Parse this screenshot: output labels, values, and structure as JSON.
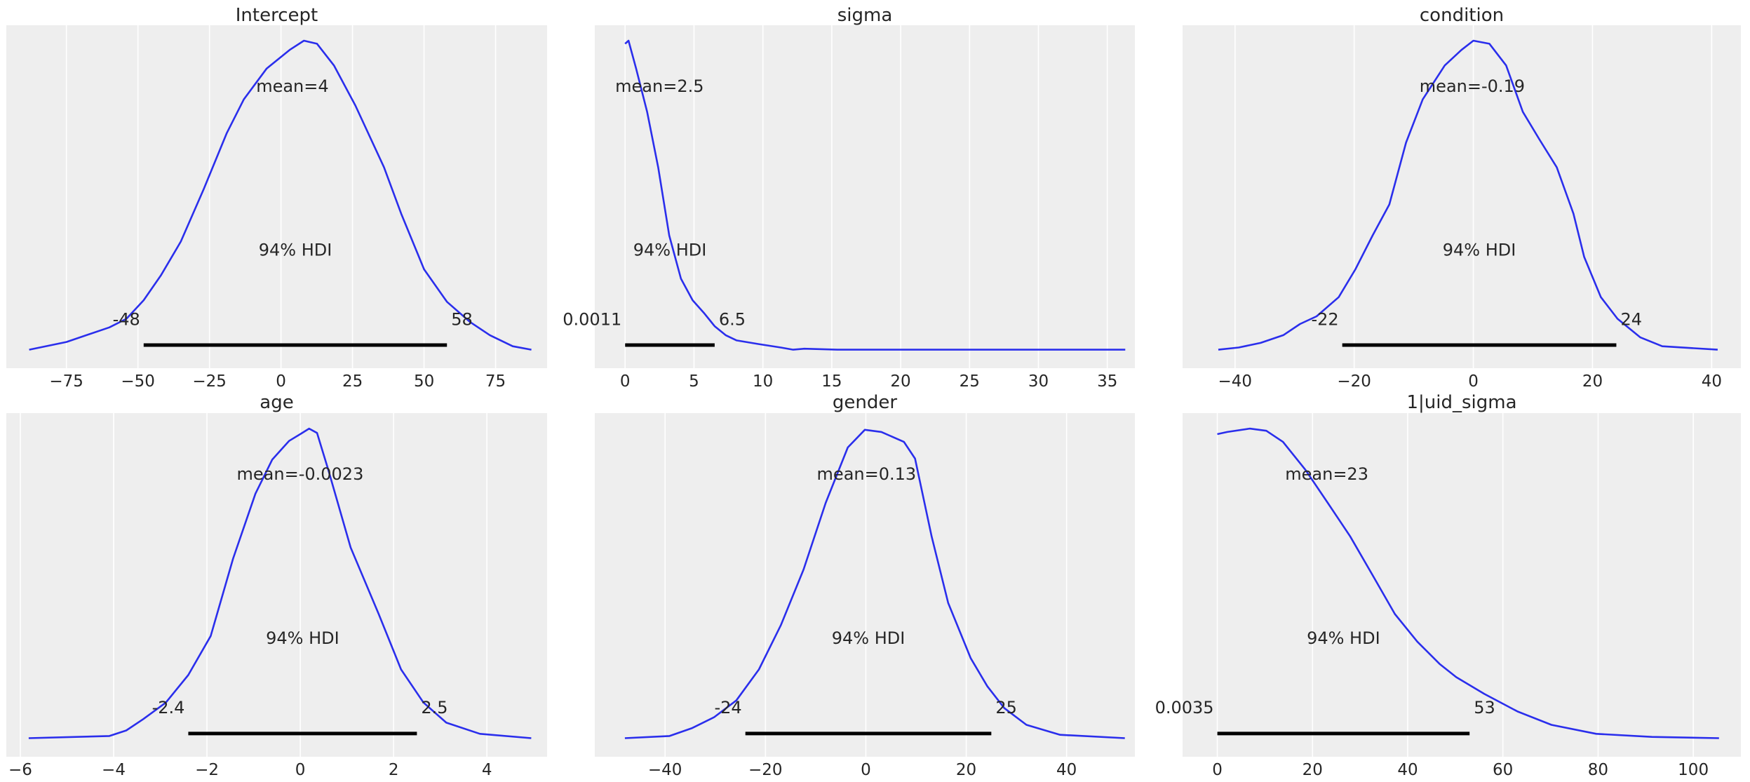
{
  "chart_data": [
    {
      "type": "line",
      "title": "Intercept",
      "xlim": [
        -96,
        93
      ],
      "ylim": [
        -0.06,
        1.05
      ],
      "xticks": [
        -75,
        -50,
        -25,
        0,
        25,
        50,
        75
      ],
      "xtick_labels": [
        "−75",
        "−50",
        "−25",
        "0",
        "25",
        "50",
        "75"
      ],
      "grid": true,
      "mean": 4,
      "mean_label": "mean=4",
      "hdi": [
        -48,
        58
      ],
      "hdi_label": "94% HDI",
      "hdi_low_label": "-48",
      "hdi_high_label": "58",
      "x": [
        -88,
        -75,
        -60,
        -54,
        -48,
        -42,
        -35,
        -27,
        -19,
        -13,
        -5,
        3,
        8,
        12.6,
        18.5,
        26,
        36,
        42,
        50,
        58,
        66,
        73,
        81,
        87.5
      ],
      "y": [
        0,
        0.025,
        0.072,
        0.1,
        0.16,
        0.24,
        0.35,
        0.52,
        0.7,
        0.81,
        0.91,
        0.97,
        1.0,
        0.99,
        0.92,
        0.79,
        0.59,
        0.44,
        0.26,
        0.155,
        0.09,
        0.047,
        0.011,
        0
      ]
    },
    {
      "type": "line",
      "title": "sigma",
      "xlim": [
        -2.2,
        37
      ],
      "ylim": [
        -0.06,
        1.05
      ],
      "xticks": [
        0,
        5,
        10,
        15,
        20,
        25,
        30,
        35
      ],
      "xtick_labels": [
        "0",
        "5",
        "10",
        "15",
        "20",
        "25",
        "30",
        "35"
      ],
      "grid": true,
      "mean": 2.5,
      "mean_label": "mean=2.5",
      "hdi": [
        0.0011,
        6.5
      ],
      "hdi_label": "94% HDI",
      "hdi_low_label": "0.0011",
      "hdi_high_label": "6.5",
      "x": [
        0,
        0.25,
        0.8,
        1.6,
        2.4,
        3.2,
        4.05,
        4.9,
        5.7,
        6.5,
        7.3,
        8.1,
        9.7,
        11.3,
        12.2,
        13,
        15.4,
        19.4,
        23.5,
        27.6,
        36.3
      ],
      "y": [
        0.99,
        1.0,
        0.91,
        0.77,
        0.59,
        0.37,
        0.23,
        0.16,
        0.12,
        0.076,
        0.047,
        0.03,
        0.018,
        0.007,
        0.0,
        0.003,
        0.0,
        0.0,
        0.0,
        0.0,
        0.0
      ]
    },
    {
      "type": "line",
      "title": "condition",
      "xlim": [
        -48.8,
        44.9
      ],
      "ylim": [
        -0.06,
        1.05
      ],
      "xticks": [
        -40,
        -20,
        0,
        20,
        40
      ],
      "xtick_labels": [
        "−40",
        "−20",
        "0",
        "20",
        "40"
      ],
      "grid": true,
      "mean": -0.19,
      "mean_label": "mean=-0.19",
      "hdi": [
        -22,
        24
      ],
      "hdi_label": "94% HDI",
      "hdi_low_label": "-22",
      "hdi_high_label": "24",
      "x": [
        -42.8,
        -39.4,
        -35.7,
        -31.9,
        -29.1,
        -26.3,
        -22.6,
        -19.8,
        -16.9,
        -14.1,
        -11.3,
        -8.5,
        -4.8,
        -2,
        0,
        2.7,
        5.5,
        8.3,
        11.1,
        14,
        16.8,
        18.6,
        21.4,
        24.2,
        28,
        31.7,
        41
      ],
      "y": [
        0,
        0.007,
        0.022,
        0.047,
        0.083,
        0.108,
        0.17,
        0.26,
        0.37,
        0.47,
        0.67,
        0.81,
        0.92,
        0.97,
        1.0,
        0.99,
        0.92,
        0.77,
        0.68,
        0.59,
        0.44,
        0.3,
        0.17,
        0.1,
        0.04,
        0.011,
        0
      ]
    },
    {
      "type": "line",
      "title": "age",
      "xlim": [
        -6.3,
        5.29
      ],
      "ylim": [
        -0.06,
        1.05
      ],
      "xticks": [
        -6,
        -4,
        -2,
        0,
        2,
        4
      ],
      "xtick_labels": [
        "−6",
        "−4",
        "−2",
        "0",
        "2",
        "4"
      ],
      "grid": true,
      "mean": -0.0023,
      "mean_label": "mean=-0.0023",
      "hdi": [
        -2.4,
        2.5
      ],
      "hdi_label": "94% HDI",
      "hdi_low_label": "-2.4",
      "hdi_high_label": "2.5",
      "x": [
        -5.82,
        -4.09,
        -3.73,
        -3.37,
        -2.88,
        -2.4,
        -1.92,
        -1.44,
        -0.96,
        -0.6,
        -0.24,
        0,
        0.19,
        0.36,
        0.6,
        1.08,
        1.68,
        2.16,
        2.64,
        3.13,
        3.85,
        4.95
      ],
      "y": [
        0,
        0.007,
        0.025,
        0.061,
        0.115,
        0.204,
        0.33,
        0.58,
        0.79,
        0.9,
        0.96,
        0.982,
        1.0,
        0.986,
        0.867,
        0.616,
        0.401,
        0.222,
        0.115,
        0.05,
        0.014,
        0
      ]
    },
    {
      "type": "line",
      "title": "gender",
      "xlim": [
        -54,
        53.6
      ],
      "ylim": [
        -0.06,
        1.05
      ],
      "xticks": [
        -40,
        -20,
        0,
        20,
        40
      ],
      "xtick_labels": [
        "−40",
        "−20",
        "0",
        "20",
        "40"
      ],
      "grid": true,
      "mean": 0.13,
      "mean_label": "mean=0.13",
      "hdi": [
        -24,
        25
      ],
      "hdi_label": "94% HDI",
      "hdi_low_label": "-24",
      "hdi_high_label": "25",
      "x": [
        -48,
        -39.1,
        -34.7,
        -30.2,
        -25.8,
        -21.3,
        -16.9,
        -12.4,
        -8,
        -3.6,
        -0.2,
        3.1,
        7.6,
        9.8,
        13.1,
        16.4,
        20.9,
        24.2,
        27.6,
        32,
        38.7,
        51.6
      ],
      "y": [
        0,
        0.007,
        0.032,
        0.068,
        0.122,
        0.222,
        0.366,
        0.545,
        0.76,
        0.939,
        0.996,
        0.989,
        0.957,
        0.903,
        0.652,
        0.437,
        0.258,
        0.168,
        0.097,
        0.043,
        0.011,
        0
      ]
    },
    {
      "type": "line",
      "title": "1|uid_sigma",
      "xlim": [
        -7.3,
        110
      ],
      "ylim": [
        -0.06,
        1.05
      ],
      "xticks": [
        0,
        20,
        40,
        60,
        80,
        100
      ],
      "xtick_labels": [
        "0",
        "20",
        "40",
        "60",
        "80",
        "100"
      ],
      "grid": true,
      "mean": 23,
      "mean_label": "mean=23",
      "hdi": [
        0.0035,
        53
      ],
      "hdi_label": "94% HDI",
      "hdi_low_label": "0.0035",
      "hdi_high_label": "53",
      "x": [
        0,
        2.1,
        6.8,
        10.3,
        13.8,
        18.5,
        23.2,
        27.9,
        32.6,
        37.3,
        42,
        46.7,
        50.2,
        56.1,
        63.1,
        70.2,
        79.6,
        91.3,
        105.4
      ],
      "y": [
        0.982,
        0.989,
        1.0,
        0.993,
        0.957,
        0.867,
        0.76,
        0.652,
        0.527,
        0.401,
        0.312,
        0.24,
        0.197,
        0.143,
        0.086,
        0.043,
        0.014,
        0.004,
        0
      ]
    }
  ],
  "colors": {
    "curve": "#2a2eec",
    "panel_bg": "#eeeeee",
    "grid": "#ffffff",
    "hdi": "#000000",
    "text": "#262626"
  }
}
